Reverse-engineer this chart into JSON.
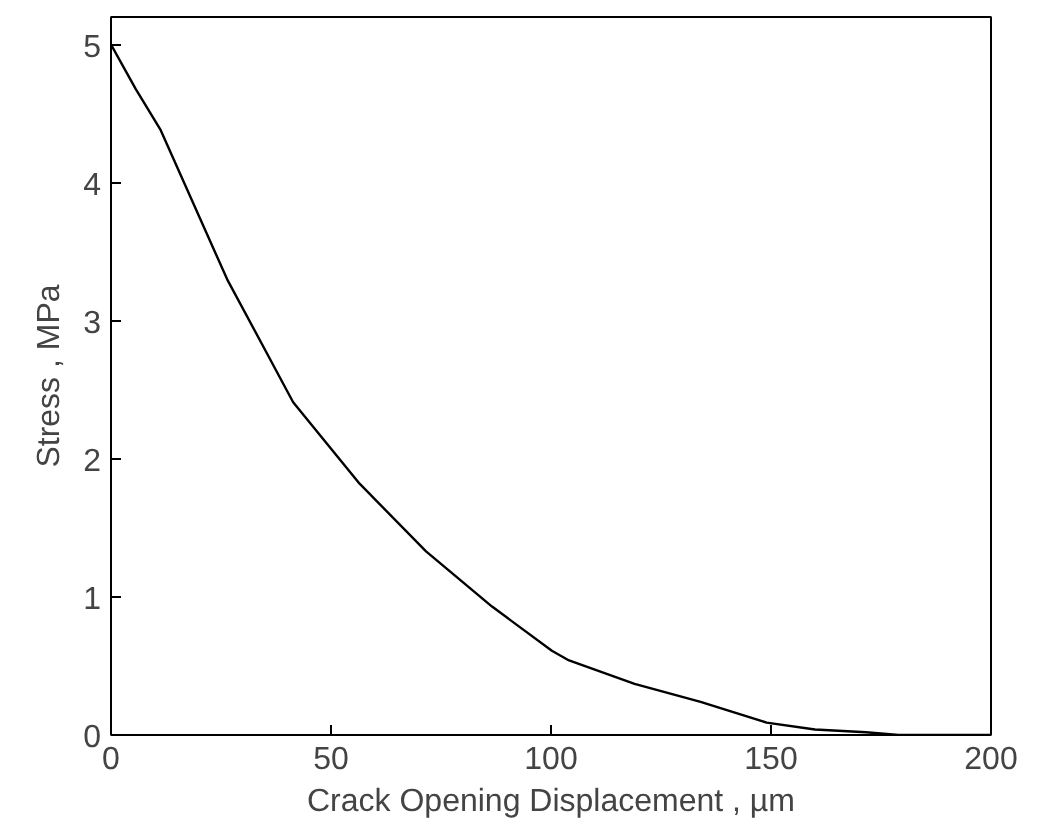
{
  "chart_data": {
    "type": "line",
    "xlabel": "Crack Opening Displacement , µm",
    "ylabel": "Stress , MPa",
    "x": [
      0,
      5.6,
      11.3,
      26.4,
      41.4,
      56.5,
      71.6,
      86.6,
      100.2,
      104.1,
      119,
      134,
      149,
      160,
      171.6,
      179,
      200
    ],
    "series": [
      {
        "color": "#000000",
        "values": [
          5,
          4.68,
          4.38,
          3.3,
          2.41,
          1.82,
          1.33,
          0.93,
          0.61,
          0.54,
          0.37,
          0.24,
          0.09,
          0.04,
          0.02,
          0,
          0
        ]
      }
    ],
    "xlim": [
      0,
      200
    ],
    "ylim": [
      0,
      5.2
    ],
    "xticks": [
      0,
      50,
      100,
      150,
      200
    ],
    "yticks": [
      0,
      1,
      2,
      3,
      4,
      5
    ],
    "grid": false,
    "marker": "none",
    "line_style": "solid"
  }
}
